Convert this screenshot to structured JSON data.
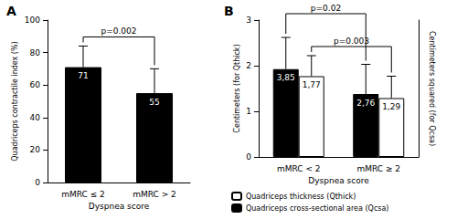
{
  "chart_data": [
    {
      "type": "bar",
      "title": "A",
      "categories": [
        "mMRC ≤ 2",
        "mMRC > 2"
      ],
      "values": [
        71,
        55
      ],
      "errors": [
        13,
        15
      ],
      "color": "#000000",
      "x_label": "Dyspnea score",
      "y_label": "Quadriceps contractile index (%)",
      "ylim": [
        0,
        100
      ],
      "yticks": [
        0,
        20,
        40,
        60,
        80,
        100
      ],
      "data_labels": true,
      "annotations": [
        {
          "text": "p=0.002"
        }
      ]
    },
    {
      "type": "bar",
      "title": "B",
      "categories": [
        "mMRC < 2",
        "mMRC ≥ 2"
      ],
      "x_label": "Dyspnea score",
      "y_label": "Centimeters (for Qthick)",
      "y2_label": "Centimeters squared (for Qcsa)",
      "ylim": [
        0,
        3
      ],
      "yticks": [
        0,
        1,
        2,
        3
      ],
      "y2lim": [
        0,
        6
      ],
      "series": [
        {
          "name": "Quadriceps cross-sectional area (Qcsa)",
          "color": "#000000",
          "axis": "y2",
          "values": [
            3.85,
            2.76
          ],
          "value_labels": [
            "3,85",
            "2,76"
          ],
          "errors": [
            1.39,
            1.3
          ]
        },
        {
          "name": "Quadriceps thickness (Qthick)",
          "color": "#ffffff",
          "values": [
            1.77,
            1.29
          ],
          "value_labels": [
            "1,77",
            "1,29"
          ],
          "errors": [
            0.45,
            0.48
          ]
        }
      ],
      "data_labels": true,
      "legend": "bottom",
      "annotations": [
        {
          "text": "p=0.003",
          "series": "Quadriceps thickness (Qthick)"
        },
        {
          "text": "p=0.02",
          "series": "Quadriceps cross-sectional area (Qcsa)"
        }
      ]
    }
  ]
}
